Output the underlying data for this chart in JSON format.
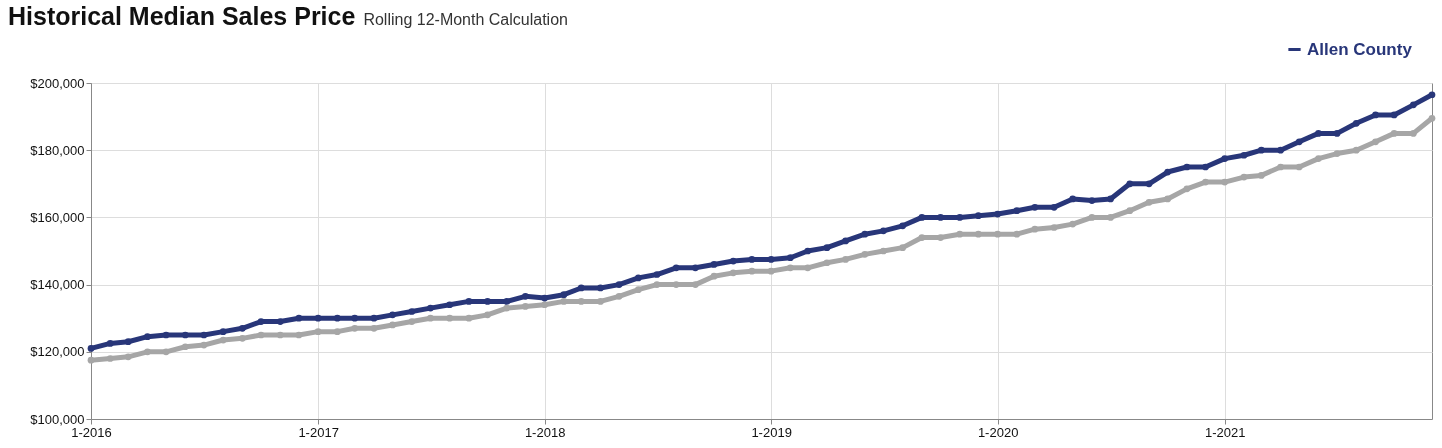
{
  "chart_data": {
    "type": "line",
    "title": "Historical Median Sales Price",
    "subtitle": "Rolling 12-Month Calculation",
    "x": [
      "2016-01",
      "2016-02",
      "2016-03",
      "2016-04",
      "2016-05",
      "2016-06",
      "2016-07",
      "2016-08",
      "2016-09",
      "2016-10",
      "2016-11",
      "2016-12",
      "2017-01",
      "2017-02",
      "2017-03",
      "2017-04",
      "2017-05",
      "2017-06",
      "2017-07",
      "2017-08",
      "2017-09",
      "2017-10",
      "2017-11",
      "2017-12",
      "2018-01",
      "2018-02",
      "2018-03",
      "2018-04",
      "2018-05",
      "2018-06",
      "2018-07",
      "2018-08",
      "2018-09",
      "2018-10",
      "2018-11",
      "2018-12",
      "2019-01",
      "2019-02",
      "2019-03",
      "2019-04",
      "2019-05",
      "2019-06",
      "2019-07",
      "2019-08",
      "2019-09",
      "2019-10",
      "2019-11",
      "2019-12",
      "2020-01",
      "2020-02",
      "2020-03",
      "2020-04",
      "2020-05",
      "2020-06",
      "2020-07",
      "2020-08",
      "2020-09",
      "2020-10",
      "2020-11",
      "2020-12",
      "2021-01",
      "2021-02",
      "2021-03",
      "2021-04",
      "2021-05",
      "2021-06",
      "2021-07",
      "2021-08",
      "2021-09",
      "2021-10",
      "2021-11",
      "2021-12"
    ],
    "series": [
      {
        "color": "#a6a6a6",
        "values": [
          117500,
          118000,
          118500,
          120000,
          120000,
          121500,
          122000,
          123500,
          124000,
          125000,
          125000,
          125000,
          126000,
          126000,
          127000,
          127000,
          128000,
          129000,
          130000,
          130000,
          130000,
          131000,
          133000,
          133500,
          134000,
          135000,
          135000,
          135000,
          136500,
          138500,
          140000,
          140000,
          140000,
          142500,
          143500,
          144000,
          144000,
          145000,
          145000,
          146500,
          147500,
          149000,
          150000,
          151000,
          154000,
          154000,
          155000,
          155000,
          155000,
          155000,
          156500,
          157000,
          158000,
          160000,
          160000,
          162000,
          164500,
          165500,
          168500,
          170500,
          170500,
          172000,
          172500,
          175000,
          175000,
          177500,
          179000,
          180000,
          182500,
          185000,
          185000,
          189500
        ]
      },
      {
        "name": "Allen County",
        "color": "#283679",
        "values": [
          121000,
          122500,
          123000,
          124500,
          125000,
          125000,
          125000,
          126000,
          127000,
          129000,
          129000,
          130000,
          130000,
          130000,
          130000,
          130000,
          131000,
          132000,
          133000,
          134000,
          135000,
          135000,
          135000,
          136500,
          136000,
          137000,
          139000,
          139000,
          140000,
          142000,
          143000,
          145000,
          145000,
          146000,
          147000,
          147500,
          147500,
          148000,
          150000,
          151000,
          153000,
          155000,
          156000,
          157500,
          160000,
          160000,
          160000,
          160500,
          161000,
          162000,
          163000,
          163000,
          165500,
          165000,
          165500,
          170000,
          170000,
          173500,
          175000,
          175000,
          177500,
          178500,
          180000,
          180000,
          182500,
          185000,
          185000,
          188000,
          190500,
          190500,
          193500,
          196500
        ]
      }
    ],
    "xlim": [
      "2016-01",
      "2021-12"
    ],
    "xticks": [
      {
        "value": "2016-01",
        "label": "1-2016"
      },
      {
        "value": "2017-01",
        "label": "1-2017"
      },
      {
        "value": "2018-01",
        "label": "1-2018"
      },
      {
        "value": "2019-01",
        "label": "1-2019"
      },
      {
        "value": "2020-01",
        "label": "1-2020"
      },
      {
        "value": "2021-01",
        "label": "1-2021"
      }
    ],
    "ylim": [
      100000,
      200000
    ],
    "yticks": [
      {
        "value": 100000,
        "label": "$100,000"
      },
      {
        "value": 120000,
        "label": "$120,000"
      },
      {
        "value": 140000,
        "label": "$140,000"
      },
      {
        "value": 160000,
        "label": "$160,000"
      },
      {
        "value": 180000,
        "label": "$180,000"
      },
      {
        "value": 200000,
        "label": "$200,000"
      }
    ],
    "grid": true,
    "legend": "top right",
    "marker": "circle",
    "line_style": "solid"
  }
}
